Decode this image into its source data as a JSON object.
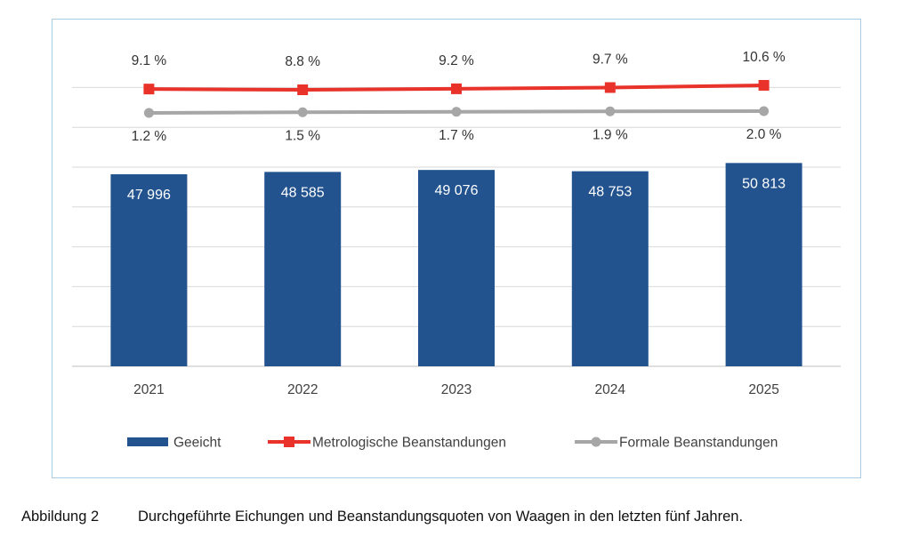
{
  "chart_data": {
    "type": "bar",
    "categories": [
      "2021",
      "2022",
      "2023",
      "2024",
      "2025"
    ],
    "bars": {
      "name": "Geeicht",
      "values": [
        47996,
        48585,
        49076,
        48753,
        50813
      ],
      "labels": [
        "47 996",
        "48 585",
        "49 076",
        "48 753",
        "50 813"
      ],
      "color": "#22538f"
    },
    "lines": [
      {
        "name": "Metrologische Beanstandungen",
        "values": [
          9.1,
          8.8,
          9.2,
          9.7,
          10.6
        ],
        "labels": [
          "9.1 %",
          "8.8 %",
          "9.2 %",
          "9.7 %",
          "10.6 %"
        ],
        "color": "#e8322a",
        "marker": "square"
      },
      {
        "name": "Formale Beanstandungen",
        "values": [
          1.2,
          1.5,
          1.7,
          1.9,
          2.0
        ],
        "labels": [
          "1.2 %",
          "1.5 %",
          "1.7 %",
          "1.9 %",
          "2.0 %"
        ],
        "color": "#a6a6a6",
        "marker": "circle"
      }
    ],
    "grid": true,
    "legend_position": "bottom"
  },
  "caption": {
    "label": "Abbildung 2",
    "text": "Durchgeführte Eichungen und Beanstandungsquoten von Waagen in den letzten fünf Jahren."
  }
}
